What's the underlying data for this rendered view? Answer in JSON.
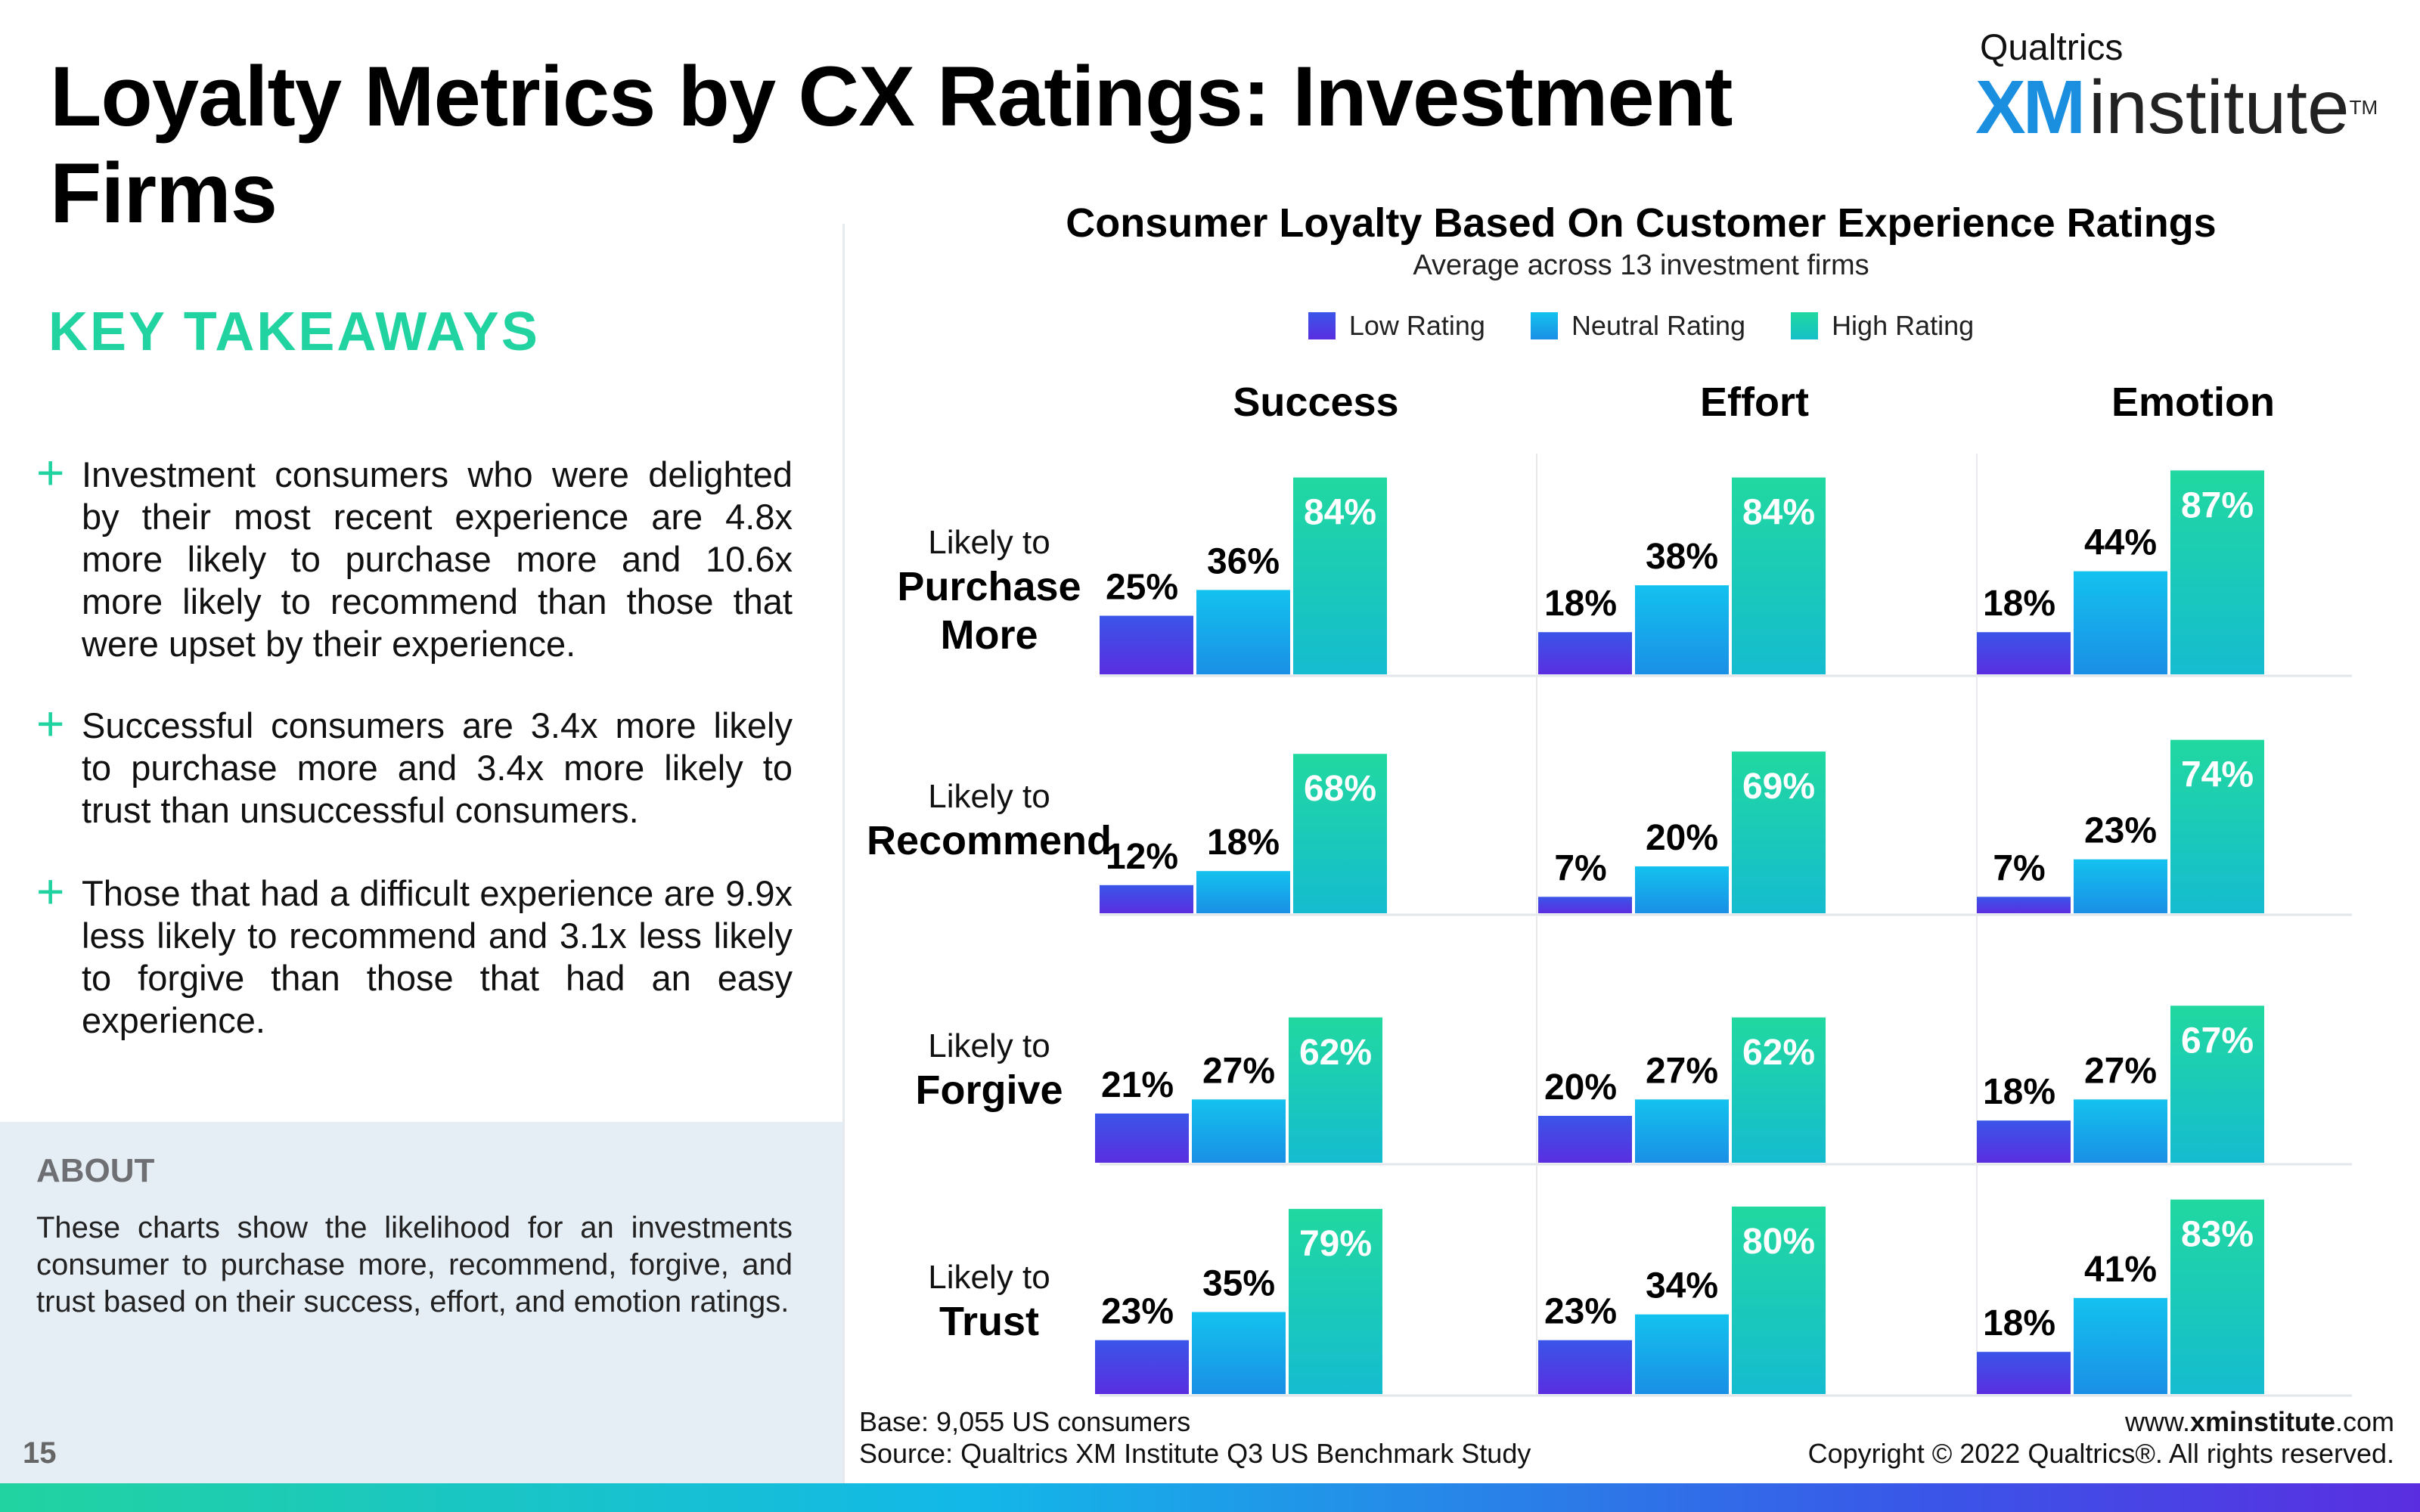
{
  "page": {
    "title": "Loyalty Metrics by CX Ratings: Investment Firms",
    "page_number": "15"
  },
  "logo": {
    "top": "Qualtrics",
    "xm": "XM",
    "institute": "institute",
    "tm": "TM"
  },
  "takeaways": {
    "heading": "KEY TAKEAWAYS",
    "items": [
      "Investment consumers who were delighted by their most recent experience are 4.8x more likely to purchase more and 10.6x more likely to recommend than those that were upset by their experience.",
      "Successful consumers are 3.4x more likely to purchase more and 3.4x more likely to trust than unsuccessful consumers.",
      "Those that had a difficult experience are 9.9x less likely to recommend and 3.1x less likely to forgive than those that had an easy experience."
    ]
  },
  "about": {
    "heading": "ABOUT",
    "text": "These charts show the likelihood for an investments consumer to purchase more, recommend, forgive, and trust based on their success, effort, and emotion ratings."
  },
  "footer": {
    "base": "Base: 9,055 US consumers",
    "source": "Source: Qualtrics XM Institute Q3 US Benchmark Study",
    "url_prefix": "www.",
    "url_bold": "xminstitute",
    "url_suffix": ".com",
    "copyright": "Copyright © 2022 Qualtrics®. All rights reserved."
  },
  "colors": {
    "low": "#4b2fe0",
    "neutral": "#15a6ea",
    "high": "#1fd3a5",
    "accent": "#21d3a0"
  },
  "chart_data": {
    "type": "bar",
    "title": "Consumer Loyalty Based On Customer Experience Ratings",
    "subtitle": "Average across 13 investment firms",
    "legend": [
      "Low Rating",
      "Neutral Rating",
      "High Rating"
    ],
    "legend_placement": "top-center",
    "columns": [
      "Success",
      "Effort",
      "Emotion"
    ],
    "rows": [
      {
        "prefix": "Likely to",
        "label_lines": [
          "Purchase",
          "More"
        ]
      },
      {
        "prefix": "Likely to",
        "label_lines": [
          "Recommend"
        ]
      },
      {
        "prefix": "Likely to",
        "label_lines": [
          "Forgive"
        ]
      },
      {
        "prefix": "Likely to",
        "label_lines": [
          "Trust"
        ]
      }
    ],
    "unit": "%",
    "ylim": [
      0,
      100
    ],
    "values": [
      [
        [
          25,
          36,
          84
        ],
        [
          18,
          38,
          84
        ],
        [
          18,
          44,
          87
        ]
      ],
      [
        [
          12,
          18,
          68
        ],
        [
          7,
          20,
          69
        ],
        [
          7,
          23,
          74
        ]
      ],
      [
        [
          21,
          27,
          62
        ],
        [
          20,
          27,
          62
        ],
        [
          18,
          27,
          67
        ]
      ],
      [
        [
          23,
          35,
          79
        ],
        [
          23,
          34,
          80
        ],
        [
          18,
          41,
          83
        ]
      ]
    ]
  }
}
